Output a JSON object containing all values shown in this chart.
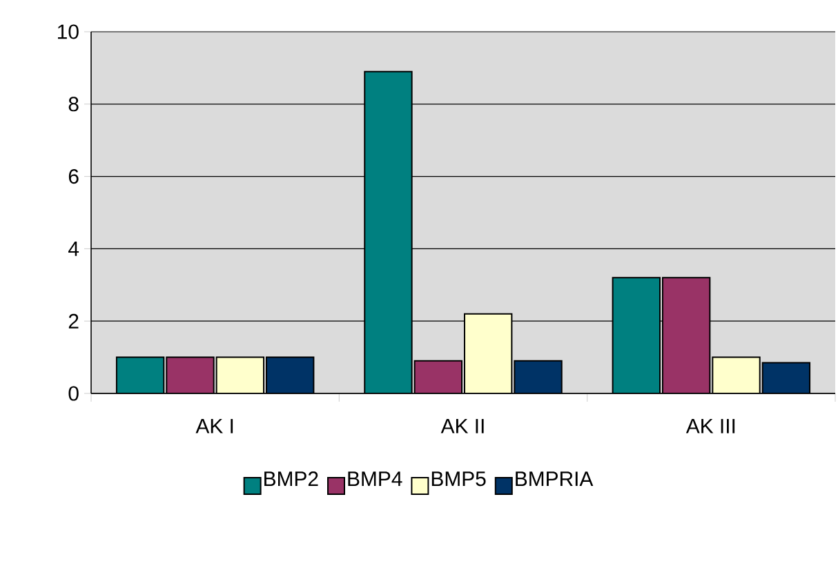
{
  "chart_data": {
    "type": "bar",
    "categories": [
      "AK I",
      "AK II",
      "AK III"
    ],
    "series": [
      {
        "name": "BMP2",
        "color": "#008080",
        "values": [
          1.0,
          8.9,
          3.2
        ]
      },
      {
        "name": "BMP4",
        "color": "#993366",
        "values": [
          1.0,
          0.9,
          3.2
        ]
      },
      {
        "name": "BMP5",
        "color": "#ffffcc",
        "values": [
          1.0,
          2.2,
          1.0
        ]
      },
      {
        "name": "BMPRIA",
        "color": "#003366",
        "values": [
          1.0,
          0.9,
          0.85
        ]
      }
    ],
    "ylim": [
      0,
      10
    ],
    "yticks": [
      0,
      2,
      4,
      6,
      8,
      10
    ],
    "grid": "y",
    "legend": "bottom"
  }
}
